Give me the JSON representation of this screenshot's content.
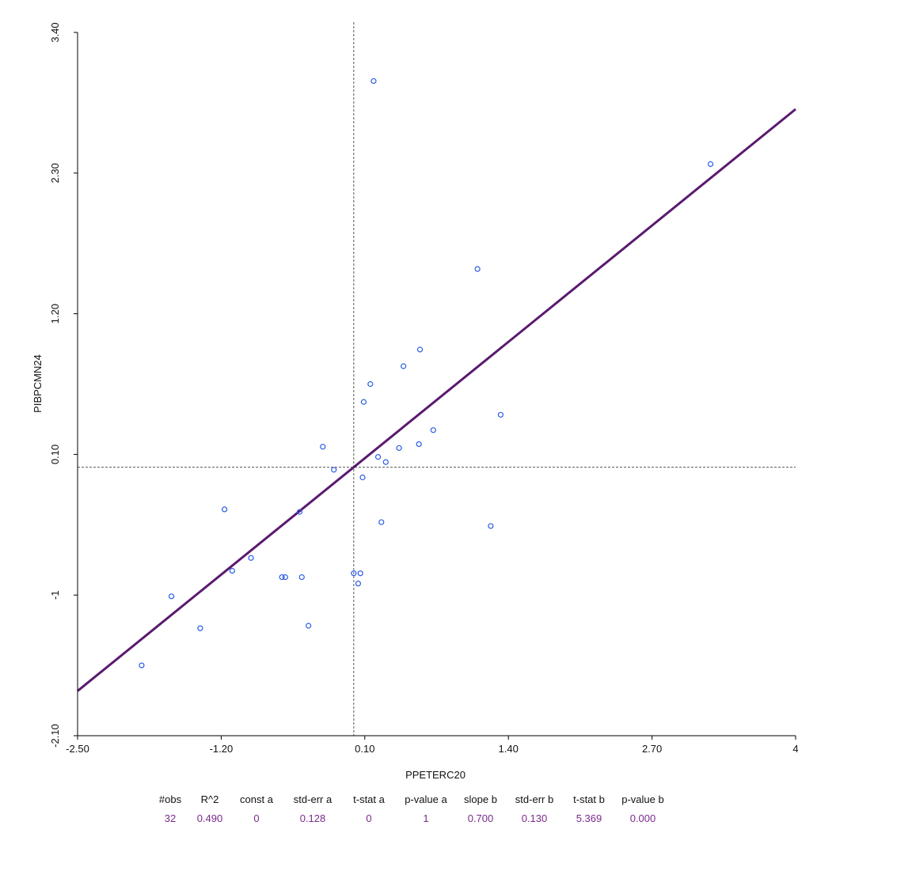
{
  "chart_data": {
    "type": "scatter",
    "xlabel": "PPETERC20",
    "ylabel": "PIBPCMN24",
    "xlim": [
      -2.5,
      4
    ],
    "ylim": [
      -2.1,
      3.4
    ],
    "x_ticks": [
      "-2.50",
      "-1.20",
      "0.10",
      "1.40",
      "2.70",
      "4"
    ],
    "x_tick_values": [
      -2.5,
      -1.2,
      0.1,
      1.4,
      2.7,
      4
    ],
    "y_ticks": [
      "-2.10",
      "-1",
      "0.10",
      "1.20",
      "2.30",
      "3.40"
    ],
    "y_tick_values": [
      -2.1,
      -1,
      0.1,
      1.2,
      2.3,
      3.4
    ],
    "reference_lines": {
      "x": 0.0,
      "y": 0.0
    },
    "regression": {
      "intercept": 0,
      "slope": 0.7,
      "color": "#5a1a6e"
    },
    "point_color": "#2a5de6",
    "points": [
      [
        0.18,
        3.02
      ],
      [
        3.23,
        2.37
      ],
      [
        1.12,
        1.55
      ],
      [
        0.6,
        0.92
      ],
      [
        0.45,
        0.79
      ],
      [
        0.15,
        0.65
      ],
      [
        0.09,
        0.51
      ],
      [
        1.33,
        0.41
      ],
      [
        0.72,
        0.29
      ],
      [
        0.59,
        0.18
      ],
      [
        0.41,
        0.15
      ],
      [
        -0.28,
        0.16
      ],
      [
        0.22,
        0.08
      ],
      [
        0.29,
        0.04
      ],
      [
        -0.18,
        -0.02
      ],
      [
        0.08,
        -0.08
      ],
      [
        -1.17,
        -0.33
      ],
      [
        -0.49,
        -0.35
      ],
      [
        0.25,
        -0.43
      ],
      [
        1.24,
        -0.46
      ],
      [
        -0.93,
        -0.71
      ],
      [
        -1.1,
        -0.81
      ],
      [
        -0.65,
        -0.86
      ],
      [
        -0.62,
        -0.86
      ],
      [
        -0.47,
        -0.86
      ],
      [
        0.0,
        -0.83
      ],
      [
        0.06,
        -0.83
      ],
      [
        0.04,
        -0.91
      ],
      [
        -1.65,
        -1.01
      ],
      [
        -0.41,
        -1.24
      ],
      [
        -1.39,
        -1.26
      ],
      [
        -1.92,
        -1.55
      ]
    ]
  },
  "stats": {
    "headers": [
      "#obs",
      "R^2",
      "const a",
      "std-err a",
      "t-stat a",
      "p-value a",
      "slope b",
      "std-err b",
      "t-stat b",
      "p-value b"
    ],
    "values": [
      "32",
      "0.490",
      "0",
      "0.128",
      "0",
      "1",
      "0.700",
      "0.130",
      "5.369",
      "0.000"
    ]
  }
}
